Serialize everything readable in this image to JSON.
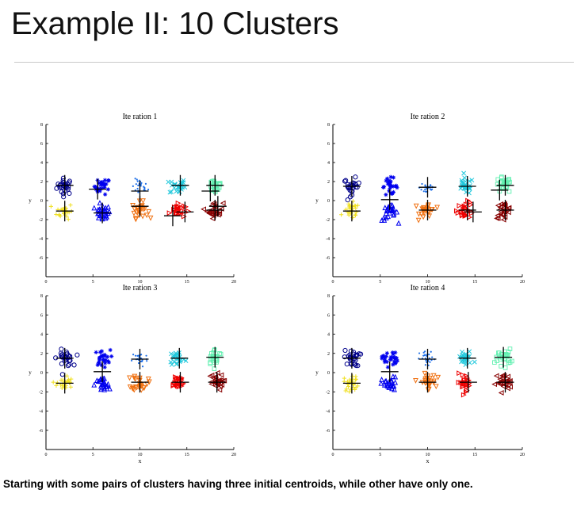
{
  "slide": {
    "title": "Example II: 10 Clusters",
    "caption": "Starting with some pairs of clusters having three initial centroids, while other have only one."
  },
  "colors": {
    "c1": "#00008b",
    "c2": "#0000ee",
    "c3": "#1e6fe8",
    "c4": "#20c8dc",
    "c5": "#60f0b0",
    "c6": "#f0e020",
    "c7": "#f07010",
    "c8": "#ee0000",
    "c9": "#880000",
    "centroid": "#000000"
  },
  "chart_data": [
    {
      "type": "scatter",
      "title": "Ite ration 1",
      "xlabel": "",
      "ylabel": "y",
      "xlim": [
        0,
        20
      ],
      "ylim": [
        -8,
        8
      ],
      "xticks": [
        "0",
        "5",
        "10",
        "15",
        "20"
      ],
      "yticks": [
        "-6",
        "-4",
        "-2",
        "0",
        "2",
        "4",
        "6",
        "8"
      ],
      "clusters": [
        {
          "cx": 2,
          "cy": 1.5,
          "color": "c1",
          "marker": "o"
        },
        {
          "cx": 6,
          "cy": 1.5,
          "color": "c2",
          "marker": "*"
        },
        {
          "cx": 6,
          "cy": -1.3,
          "color": "c2",
          "marker": "^"
        },
        {
          "cx": 10,
          "cy": 1.4,
          "color": "c3",
          "marker": "."
        },
        {
          "cx": 14,
          "cy": 1.5,
          "color": "c4",
          "marker": "x"
        },
        {
          "cx": 18,
          "cy": 1.6,
          "color": "c5",
          "marker": "s"
        },
        {
          "cx": 2,
          "cy": -1.1,
          "color": "c6",
          "marker": "+"
        },
        {
          "cx": 10,
          "cy": -1.0,
          "color": "c7",
          "marker": "v"
        },
        {
          "cx": 14,
          "cy": -1.0,
          "color": "c8",
          "marker": ">"
        },
        {
          "cx": 18,
          "cy": -1.0,
          "color": "c9",
          "marker": "<"
        }
      ],
      "centroids": [
        [
          2,
          1.6
        ],
        [
          5.5,
          1.2
        ],
        [
          10,
          1.0
        ],
        [
          14.3,
          1.6
        ],
        [
          18,
          1.6
        ],
        [
          17.5,
          1.0
        ],
        [
          2,
          -1.1
        ],
        [
          6,
          -1.3
        ],
        [
          10,
          -0.6
        ],
        [
          13.5,
          -1.6
        ],
        [
          14.8,
          -1.2
        ],
        [
          18,
          -1.0
        ],
        [
          18.3,
          -0.6
        ]
      ]
    },
    {
      "type": "scatter",
      "title": "Ite ration 2",
      "xlabel": "",
      "ylabel": "y",
      "xlim": [
        0,
        20
      ],
      "ylim": [
        -8,
        8
      ],
      "xticks": [
        "0",
        "5",
        "10",
        "15",
        "20"
      ],
      "yticks": [
        "-6",
        "-4",
        "-2",
        "0",
        "2",
        "4",
        "6",
        "8"
      ],
      "clusters": [
        {
          "cx": 2,
          "cy": 1.5,
          "color": "c1",
          "marker": "o"
        },
        {
          "cx": 6,
          "cy": 1.5,
          "color": "c2",
          "marker": "*"
        },
        {
          "cx": 6,
          "cy": -1.3,
          "color": "c2",
          "marker": "^"
        },
        {
          "cx": 10,
          "cy": 1.4,
          "color": "c3",
          "marker": "."
        },
        {
          "cx": 14,
          "cy": 1.5,
          "color": "c4",
          "marker": "x"
        },
        {
          "cx": 18,
          "cy": 1.6,
          "color": "c5",
          "marker": "s"
        },
        {
          "cx": 2,
          "cy": -1.1,
          "color": "c6",
          "marker": "+"
        },
        {
          "cx": 10,
          "cy": -1.0,
          "color": "c7",
          "marker": "v"
        },
        {
          "cx": 14,
          "cy": -1.0,
          "color": "c8",
          "marker": ">"
        },
        {
          "cx": 18,
          "cy": -1.0,
          "color": "c9",
          "marker": "<"
        }
      ],
      "centroids": [
        [
          2,
          1.5
        ],
        [
          6,
          0.1
        ],
        [
          10,
          1.4
        ],
        [
          14.2,
          1.5
        ],
        [
          18.2,
          1.6
        ],
        [
          17.6,
          1.1
        ],
        [
          2,
          -1.1
        ],
        [
          10,
          -1.0
        ],
        [
          14.2,
          -1.0
        ],
        [
          14.8,
          -1.2
        ],
        [
          18.2,
          -1.0
        ]
      ]
    },
    {
      "type": "scatter",
      "title": "Ite ration 3",
      "xlabel": "x",
      "ylabel": "y",
      "xlim": [
        0,
        20
      ],
      "ylim": [
        -8,
        8
      ],
      "xticks": [
        "0",
        "5",
        "10",
        "15",
        "20"
      ],
      "yticks": [
        "-6",
        "-4",
        "-2",
        "0",
        "2",
        "4",
        "6",
        "8"
      ],
      "clusters": [
        {
          "cx": 2,
          "cy": 1.5,
          "color": "c1",
          "marker": "o"
        },
        {
          "cx": 6,
          "cy": 1.5,
          "color": "c2",
          "marker": "*"
        },
        {
          "cx": 6,
          "cy": -1.3,
          "color": "c2",
          "marker": "^"
        },
        {
          "cx": 10,
          "cy": 1.4,
          "color": "c3",
          "marker": "."
        },
        {
          "cx": 14,
          "cy": 1.5,
          "color": "c4",
          "marker": "x"
        },
        {
          "cx": 18,
          "cy": 1.6,
          "color": "c5",
          "marker": "s"
        },
        {
          "cx": 2,
          "cy": -1.1,
          "color": "c6",
          "marker": "+"
        },
        {
          "cx": 10,
          "cy": -1.0,
          "color": "c7",
          "marker": "v"
        },
        {
          "cx": 14,
          "cy": -1.0,
          "color": "c8",
          "marker": ">"
        },
        {
          "cx": 18,
          "cy": -1.0,
          "color": "c9",
          "marker": "<"
        }
      ],
      "centroids": [
        [
          2,
          1.5
        ],
        [
          6,
          0.1
        ],
        [
          10,
          1.4
        ],
        [
          14.2,
          1.5
        ],
        [
          18,
          1.6
        ],
        [
          2,
          -1.1
        ],
        [
          10,
          -1.0
        ],
        [
          14.3,
          -1.0
        ],
        [
          18.2,
          -1.0
        ]
      ]
    },
    {
      "type": "scatter",
      "title": "Ite ration 4",
      "xlabel": "x",
      "ylabel": "y",
      "xlim": [
        0,
        20
      ],
      "ylim": [
        -8,
        8
      ],
      "xticks": [
        "0",
        "5",
        "10",
        "15",
        "20"
      ],
      "yticks": [
        "-6",
        "-4",
        "-2",
        "0",
        "2",
        "4",
        "6",
        "8"
      ],
      "clusters": [
        {
          "cx": 2,
          "cy": 1.5,
          "color": "c1",
          "marker": "o"
        },
        {
          "cx": 6,
          "cy": 1.5,
          "color": "c2",
          "marker": "*"
        },
        {
          "cx": 6,
          "cy": -1.3,
          "color": "c2",
          "marker": "^"
        },
        {
          "cx": 10,
          "cy": 1.4,
          "color": "c3",
          "marker": "."
        },
        {
          "cx": 14,
          "cy": 1.5,
          "color": "c4",
          "marker": "x"
        },
        {
          "cx": 18,
          "cy": 1.6,
          "color": "c5",
          "marker": "s"
        },
        {
          "cx": 2,
          "cy": -1.1,
          "color": "c6",
          "marker": "+"
        },
        {
          "cx": 10,
          "cy": -1.0,
          "color": "c7",
          "marker": "v"
        },
        {
          "cx": 14,
          "cy": -1.0,
          "color": "c8",
          "marker": ">"
        },
        {
          "cx": 18,
          "cy": -1.0,
          "color": "c9",
          "marker": "<"
        }
      ],
      "centroids": [
        [
          2,
          1.5
        ],
        [
          6,
          0.1
        ],
        [
          10,
          1.4
        ],
        [
          14.2,
          1.5
        ],
        [
          18,
          1.6
        ],
        [
          2,
          -1.1
        ],
        [
          10,
          -1.0
        ],
        [
          14.3,
          -1.0
        ],
        [
          18.2,
          -1.0
        ]
      ]
    }
  ]
}
